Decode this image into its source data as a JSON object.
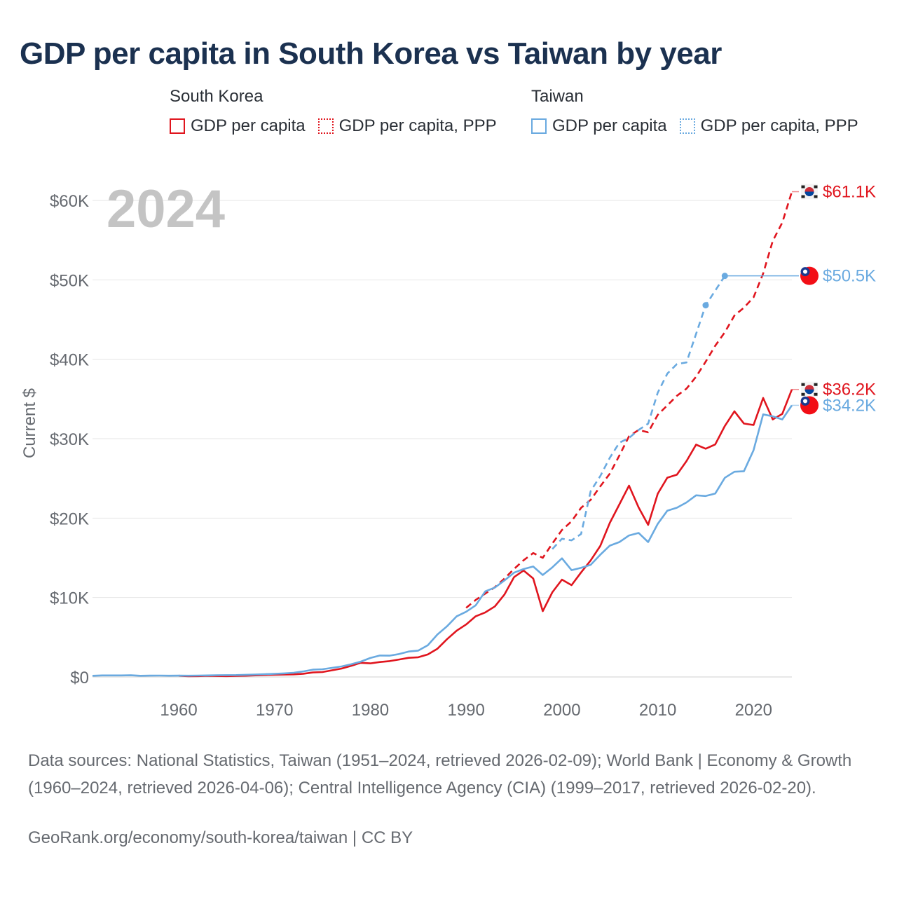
{
  "title": "GDP per capita in South Korea vs Taiwan by year",
  "legend": {
    "groups": [
      {
        "name": "South Korea",
        "items": [
          {
            "label": "GDP per capita",
            "style": "solid"
          },
          {
            "label": "GDP per capita, PPP",
            "style": "dotted"
          }
        ],
        "color": "#e0151e"
      },
      {
        "name": "Taiwan",
        "items": [
          {
            "label": "GDP per capita",
            "style": "solid"
          },
          {
            "label": "GDP per capita, PPP",
            "style": "dotted"
          }
        ],
        "color": "#6aaae0"
      }
    ]
  },
  "year_watermark": "2024",
  "sources": "Data sources: National Statistics, Taiwan (1951–2024, retrieved 2026-02-09); World Bank | Economy & Growth (1960–2024, retrieved 2026-04-06); Central Intelligence Agency (CIA) (1999–2017, retrieved 2026-02-20).",
  "credit": "GeoRank.org/economy/south-korea/taiwan | CC BY",
  "chart_data": {
    "type": "line",
    "ylabel": "Current $",
    "xlabel": "",
    "xlim": [
      1951,
      2024
    ],
    "ylim": [
      0,
      62000
    ],
    "x_ticks": [
      1960,
      1970,
      1980,
      1990,
      2000,
      2010,
      2020
    ],
    "x_tick_labels": [
      "1960",
      "1970",
      "1980",
      "1990",
      "2000",
      "2010",
      "2020"
    ],
    "y_ticks": [
      0,
      10000,
      20000,
      30000,
      40000,
      50000,
      60000
    ],
    "y_tick_labels": [
      "$0",
      "$10K",
      "$20K",
      "$30K",
      "$40K",
      "$50K",
      "$60K"
    ],
    "grid": true,
    "series": [
      {
        "name": "South Korea GDP per capita",
        "color": "#e0151e",
        "dash": "solid",
        "end_label": "$36.2K",
        "flag": "south-korea-flag",
        "x": [
          1960,
          1961,
          1962,
          1963,
          1964,
          1965,
          1966,
          1967,
          1968,
          1969,
          1970,
          1971,
          1972,
          1973,
          1974,
          1975,
          1976,
          1977,
          1978,
          1979,
          1980,
          1981,
          1982,
          1983,
          1984,
          1985,
          1986,
          1987,
          1988,
          1989,
          1990,
          1991,
          1992,
          1993,
          1994,
          1995,
          1996,
          1997,
          1998,
          1999,
          2000,
          2001,
          2002,
          2003,
          2004,
          2005,
          2006,
          2007,
          2008,
          2009,
          2010,
          2011,
          2012,
          2013,
          2014,
          2015,
          2016,
          2017,
          2018,
          2019,
          2020,
          2021,
          2022,
          2023,
          2024
        ],
        "values": [
          158,
          94,
          106,
          146,
          124,
          109,
          133,
          161,
          199,
          243,
          279,
          301,
          324,
          406,
          563,
          615,
          834,
          1056,
          1402,
          1783,
          1715,
          1883,
          1992,
          2199,
          2413,
          2482,
          2835,
          3555,
          4749,
          5817,
          6610,
          7637,
          8127,
          8885,
          10385,
          12565,
          13403,
          12398,
          8282,
          10672,
          12257,
          11561,
          13165,
          14673,
          16496,
          19403,
          21743,
          24086,
          21345,
          19143,
          23077,
          25096,
          25467,
          27179,
          29253,
          28737,
          29274,
          31601,
          33447,
          31902,
          31721,
          35126,
          32423,
          33121,
          36200
        ]
      },
      {
        "name": "South Korea GDP per capita, PPP",
        "color": "#e0151e",
        "dash": "dashed",
        "end_label": "$61.1K",
        "flag": "south-korea-flag",
        "x": [
          1990,
          1991,
          1992,
          1993,
          1994,
          1995,
          1996,
          1997,
          1998,
          1999,
          2000,
          2001,
          2002,
          2003,
          2004,
          2005,
          2006,
          2007,
          2008,
          2009,
          2010,
          2011,
          2012,
          2013,
          2014,
          2015,
          2016,
          2017,
          2018,
          2019,
          2020,
          2021,
          2022,
          2023,
          2024
        ],
        "values": [
          8700,
          9700,
          10500,
          11300,
          12400,
          13600,
          14700,
          15600,
          15000,
          16800,
          18500,
          19600,
          21300,
          22300,
          24000,
          25600,
          27900,
          30300,
          31100,
          30800,
          33000,
          34200,
          35400,
          36300,
          37800,
          39700,
          41700,
          43400,
          45500,
          46500,
          47800,
          50800,
          54900,
          57200,
          61100
        ]
      },
      {
        "name": "Taiwan GDP per capita",
        "color": "#6aaae0",
        "dash": "solid",
        "end_label": "$34.2K",
        "flag": "taiwan-flag",
        "x": [
          1951,
          1952,
          1953,
          1954,
          1955,
          1956,
          1957,
          1958,
          1959,
          1960,
          1961,
          1962,
          1963,
          1964,
          1965,
          1966,
          1967,
          1968,
          1969,
          1970,
          1971,
          1972,
          1973,
          1974,
          1975,
          1976,
          1977,
          1978,
          1979,
          1980,
          1981,
          1982,
          1983,
          1984,
          1985,
          1986,
          1987,
          1988,
          1989,
          1990,
          1991,
          1992,
          1993,
          1994,
          1995,
          1996,
          1997,
          1998,
          1999,
          2000,
          2001,
          2002,
          2003,
          2004,
          2005,
          2006,
          2007,
          2008,
          2009,
          2010,
          2011,
          2012,
          2013,
          2014,
          2015,
          2016,
          2017,
          2018,
          2019,
          2020,
          2021,
          2022,
          2023,
          2024
        ],
        "values": [
          154,
          196,
          198,
          190,
          216,
          151,
          167,
          178,
          155,
          164,
          155,
          176,
          198,
          223,
          226,
          242,
          274,
          308,
          350,
          393,
          447,
          527,
          699,
          919,
          974,
          1149,
          1326,
          1593,
          1933,
          2389,
          2700,
          2681,
          2881,
          3203,
          3314,
          3999,
          5350,
          6370,
          7626,
          8216,
          9016,
          10778,
          11261,
          12160,
          13129,
          13592,
          13904,
          12840,
          13804,
          14941,
          13448,
          13750,
          14120,
          15388,
          16532,
          16984,
          17814,
          18131,
          16988,
          19278,
          20939,
          21308,
          21973,
          22874,
          22780,
          23091,
          25080,
          25838,
          25908,
          28549,
          33059,
          32811,
          32430,
          34200
        ]
      },
      {
        "name": "Taiwan GDP per capita, PPP",
        "color": "#6aaae0",
        "dash": "dashed",
        "end_label": "$50.5K",
        "flag": "taiwan-flag",
        "x": [
          1999,
          2000,
          2001,
          2002,
          2003,
          2004,
          2005,
          2006,
          2007,
          2008,
          2009,
          2010,
          2011,
          2012,
          2013,
          2014,
          2015,
          2016,
          2017
        ],
        "values": [
          16100,
          17400,
          17200,
          18000,
          23400,
          25300,
          27600,
          29500,
          30100,
          31100,
          31900,
          35800,
          38200,
          39400,
          39600,
          null,
          46800,
          null,
          50500
        ],
        "markers": [
          2015,
          2017
        ],
        "carry_to": 2024
      }
    ]
  }
}
